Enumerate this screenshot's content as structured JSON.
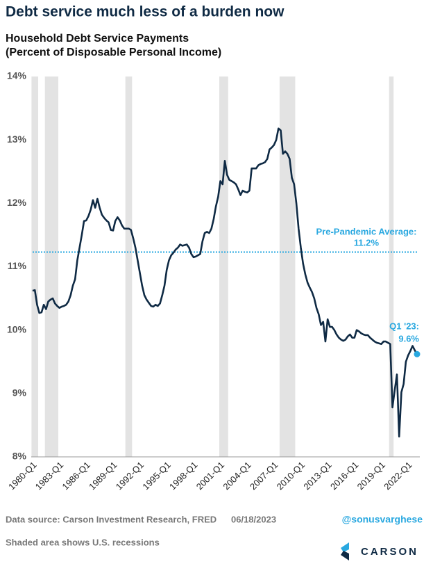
{
  "chart_data": {
    "type": "line",
    "title": "Debt service much less of a burden now",
    "subtitle": [
      "Household Debt Service Payments",
      "(Percent of Disposable Personal Income)"
    ],
    "categories": [
      "1980-Q1",
      null,
      null,
      null,
      null,
      null,
      null,
      null,
      null,
      null,
      null,
      null,
      "1983-Q1",
      null,
      null,
      null,
      null,
      null,
      null,
      null,
      null,
      null,
      null,
      null,
      "1986-Q1",
      null,
      null,
      null,
      null,
      null,
      null,
      null,
      null,
      null,
      null,
      null,
      "1989-Q1",
      null,
      null,
      null,
      null,
      null,
      null,
      null,
      null,
      null,
      null,
      null,
      "1992-Q1",
      null,
      null,
      null,
      null,
      null,
      null,
      null,
      null,
      null,
      null,
      null,
      "1995-Q1",
      null,
      null,
      null,
      null,
      null,
      null,
      null,
      null,
      null,
      null,
      null,
      "1998-Q1",
      null,
      null,
      null,
      null,
      null,
      null,
      null,
      null,
      null,
      null,
      null,
      "2001-Q1",
      null,
      null,
      null,
      null,
      null,
      null,
      null,
      null,
      null,
      null,
      null,
      "2004-Q1",
      null,
      null,
      null,
      null,
      null,
      null,
      null,
      null,
      null,
      null,
      null,
      "2007-Q1",
      null,
      null,
      null,
      null,
      null,
      null,
      null,
      null,
      null,
      null,
      null,
      "2010-Q1",
      null,
      null,
      null,
      null,
      null,
      null,
      null,
      null,
      null,
      null,
      null,
      "2013-Q1",
      null,
      null,
      null,
      null,
      null,
      null,
      null,
      null,
      null,
      null,
      null,
      "2016-Q1",
      null,
      null,
      null,
      null,
      null,
      null,
      null,
      null,
      null,
      null,
      null,
      "2019-Q1",
      null,
      null,
      null,
      null,
      null,
      null,
      null,
      null,
      null,
      null,
      null,
      "2022-Q1",
      null,
      null,
      null,
      null
    ],
    "values": [
      10.62,
      10.63,
      10.4,
      10.27,
      10.28,
      10.4,
      10.33,
      10.45,
      10.48,
      10.5,
      10.42,
      10.38,
      10.35,
      10.37,
      10.38,
      10.4,
      10.45,
      10.55,
      10.7,
      10.8,
      11.1,
      11.3,
      11.5,
      11.72,
      11.73,
      11.8,
      11.9,
      12.05,
      11.93,
      12.07,
      11.93,
      11.82,
      11.77,
      11.73,
      11.7,
      11.58,
      11.57,
      11.72,
      11.78,
      11.73,
      11.65,
      11.6,
      11.6,
      11.6,
      11.58,
      11.45,
      11.3,
      11.1,
      10.9,
      10.7,
      10.55,
      10.48,
      10.43,
      10.38,
      10.37,
      10.4,
      10.38,
      10.42,
      10.55,
      10.7,
      10.95,
      11.1,
      11.18,
      11.22,
      11.27,
      11.3,
      11.35,
      11.33,
      11.34,
      11.35,
      11.3,
      11.2,
      11.15,
      11.16,
      11.18,
      11.2,
      11.4,
      11.53,
      11.55,
      11.53,
      11.6,
      11.75,
      11.95,
      12.1,
      12.35,
      12.3,
      12.67,
      12.45,
      12.37,
      12.35,
      12.33,
      12.3,
      12.22,
      12.13,
      12.2,
      12.18,
      12.17,
      12.2,
      12.55,
      12.55,
      12.55,
      12.6,
      12.62,
      12.63,
      12.65,
      12.7,
      12.85,
      12.88,
      12.92,
      13.0,
      13.18,
      13.15,
      12.78,
      12.82,
      12.78,
      12.7,
      12.4,
      12.3,
      12.0,
      11.6,
      11.3,
      11.05,
      10.88,
      10.75,
      10.67,
      10.6,
      10.5,
      10.35,
      10.25,
      10.08,
      10.13,
      9.82,
      10.17,
      10.05,
      10.05,
      10.0,
      9.93,
      9.88,
      9.85,
      9.83,
      9.85,
      9.9,
      9.93,
      9.88,
      9.88,
      10.0,
      9.98,
      9.95,
      9.93,
      9.92,
      9.92,
      9.88,
      9.85,
      9.82,
      9.8,
      9.79,
      9.78,
      9.82,
      9.82,
      9.8,
      9.78,
      8.78,
      9.05,
      9.3,
      8.32,
      9.02,
      9.15,
      9.5,
      9.6,
      9.67,
      9.75,
      9.68,
      9.62
    ],
    "color": "#0f2a44",
    "ylim": [
      8,
      14
    ],
    "yticks": [
      {
        "value": 8,
        "label": "8%"
      },
      {
        "value": 9,
        "label": "9%"
      },
      {
        "value": 10,
        "label": "10%"
      },
      {
        "value": 11,
        "label": "11%"
      },
      {
        "value": 12,
        "label": "12%"
      },
      {
        "value": 13,
        "label": "13%"
      },
      {
        "value": 14,
        "label": "14%"
      }
    ],
    "grid": false,
    "recessions": [
      [
        0,
        2
      ],
      [
        6,
        11
      ],
      [
        42,
        44
      ],
      [
        84,
        87
      ],
      [
        111,
        117
      ],
      [
        160,
        161
      ]
    ],
    "reference_line": {
      "value": 11.23,
      "label": [
        "Pre-Pandemic Average:",
        "11.2%"
      ],
      "color": "#29a8e0"
    },
    "last_point_label": [
      "Q1 '23:",
      "9.6%"
    ],
    "source": "Data source: Carson Investment Research, FRED",
    "date": "06/18/2023",
    "handle": "@sonusvarghese",
    "note": "Shaded area shows U.S. recessions",
    "brand": "CARSON"
  }
}
